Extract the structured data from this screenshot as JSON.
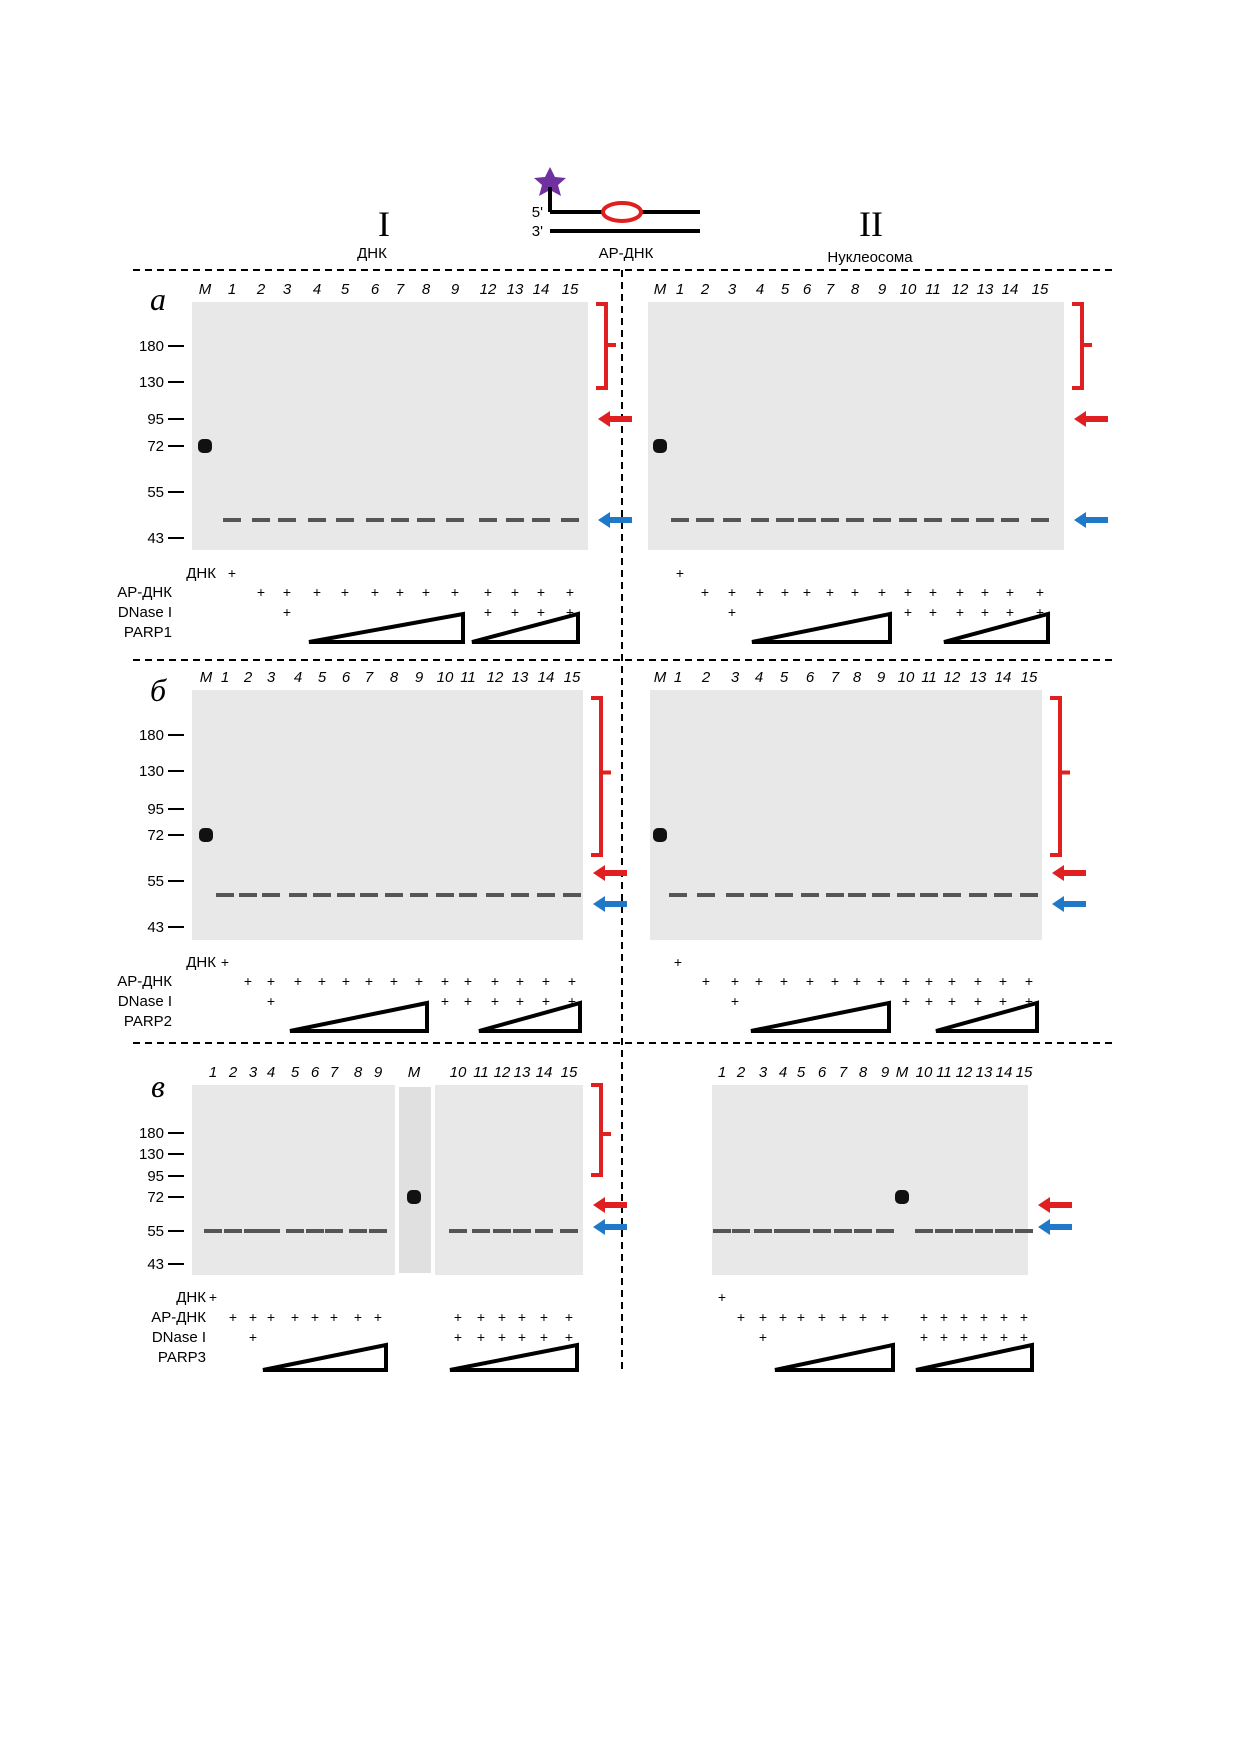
{
  "header": {
    "col1_numeral": "I",
    "col1_label": "ДНК",
    "col2_numeral": "II",
    "col2_label": "Нуклеосома",
    "schema_5": "5'",
    "schema_3": "3'",
    "schema_label": "АР-ДНК",
    "colors": {
      "star": "#7030a0",
      "ap_site": "#e02020",
      "red_arrow": "#e02020",
      "blue_arrow": "#1f78c8",
      "bracket": "#e02020"
    }
  },
  "panels": [
    {
      "letter": "а",
      "row_labels": [
        "ДНК",
        "АР-ДНК",
        "DNase I",
        "PARP1"
      ],
      "gels": [
        {
          "lanes": [
            "M",
            "1",
            "2",
            "3",
            "4",
            "5",
            "6",
            "7",
            "8",
            "9",
            "12",
            "13",
            "14",
            "15"
          ],
          "markers": [
            "180",
            "130",
            "95",
            "72",
            "55",
            "43"
          ],
          "signs": {
            "dna": [
              "",
              "+",
              "",
              "",
              "",
              "",
              "",
              "",
              "",
              "",
              "",
              "",
              "",
              ""
            ],
            "ap": [
              "",
              "",
              "+",
              "+",
              "+",
              "+",
              "+",
              "+",
              "+",
              "+",
              "+",
              "+",
              "+",
              "+"
            ],
            "dnase": [
              "",
              "",
              "",
              "+",
              "",
              "",
              "",
              "",
              "",
              "",
              "+",
              "+",
              "+",
              "+"
            ]
          }
        },
        {
          "lanes": [
            "M",
            "1",
            "2",
            "3",
            "4",
            "5",
            "6",
            "7",
            "8",
            "9",
            "10",
            "11",
            "12",
            "13",
            "14",
            "15"
          ],
          "markers": [],
          "signs": {
            "dna": [
              "",
              "+",
              "",
              "",
              "",
              "",
              "",
              "",
              "",
              "",
              "",
              "",
              "",
              "",
              "",
              ""
            ],
            "ap": [
              "",
              "",
              "+",
              "+",
              "+",
              "+",
              "+",
              "+",
              "+",
              "+",
              "+",
              "+",
              "+",
              "+",
              "+",
              "+"
            ],
            "dnase": [
              "",
              "",
              "",
              "+",
              "",
              "",
              "",
              "",
              "",
              "",
              "+",
              "+",
              "+",
              "+",
              "+",
              "+"
            ]
          }
        }
      ]
    },
    {
      "letter": "б",
      "row_labels": [
        "ДНК",
        "АР-ДНК",
        "DNase I",
        "PARP2"
      ],
      "gels": [
        {
          "lanes": [
            "M",
            "1",
            "2",
            "3",
            "4",
            "5",
            "6",
            "7",
            "8",
            "9",
            "10",
            "11",
            "12",
            "13",
            "14",
            "15"
          ],
          "markers": [
            "180",
            "130",
            "95",
            "72",
            "55",
            "43"
          ],
          "signs": {
            "dna": [
              "",
              "+",
              "",
              "",
              "",
              "",
              "",
              "",
              "",
              "",
              "",
              "",
              "",
              "",
              "",
              ""
            ],
            "ap": [
              "",
              "",
              "+",
              "+",
              "+",
              "+",
              "+",
              "+",
              "+",
              "+",
              "+",
              "+",
              "+",
              "+",
              "+",
              "+"
            ],
            "dnase": [
              "",
              "",
              "",
              "+",
              "",
              "",
              "",
              "",
              "",
              "",
              "+",
              "+",
              "+",
              "+",
              "+",
              "+"
            ]
          }
        },
        {
          "lanes": [
            "M",
            "1",
            "2",
            "3",
            "4",
            "5",
            "6",
            "7",
            "8",
            "9",
            "10",
            "11",
            "12",
            "13",
            "14",
            "15"
          ],
          "markers": [],
          "signs": {
            "dna": [
              "",
              "+",
              "",
              "",
              "",
              "",
              "",
              "",
              "",
              "",
              "",
              "",
              "",
              "",
              "",
              ""
            ],
            "ap": [
              "",
              "",
              "+",
              "+",
              "+",
              "+",
              "+",
              "+",
              "+",
              "+",
              "+",
              "+",
              "+",
              "+",
              "+",
              "+"
            ],
            "dnase": [
              "",
              "",
              "",
              "+",
              "",
              "",
              "",
              "",
              "",
              "",
              "+",
              "+",
              "+",
              "+",
              "+",
              "+"
            ]
          }
        }
      ]
    },
    {
      "letter": "в",
      "row_labels": [
        "ДНК",
        "АР-ДНК",
        "DNase I",
        "PARP3"
      ],
      "gels": [
        {
          "lanes": [
            "1",
            "2",
            "3",
            "4",
            "5",
            "6",
            "7",
            "8",
            "9",
            "M",
            "10",
            "11",
            "12",
            "13",
            "14",
            "15"
          ],
          "markers": [
            "180",
            "130",
            "95",
            "72",
            "55",
            "43"
          ],
          "signs": {
            "dna": [
              "+",
              "",
              "",
              "",
              "",
              "",
              "",
              "",
              "",
              "",
              "",
              "",
              "",
              "",
              "",
              ""
            ],
            "ap": [
              "",
              "+",
              "+",
              "+",
              "+",
              "+",
              "+",
              "+",
              "+",
              "",
              "+",
              "+",
              "+",
              "+",
              "+",
              "+"
            ],
            "dnase": [
              "",
              "",
              "+",
              "",
              "",
              "",
              "",
              "",
              "",
              "",
              "+",
              "+",
              "+",
              "+",
              "+",
              "+"
            ]
          }
        },
        {
          "lanes": [
            "1",
            "2",
            "3",
            "4",
            "5",
            "6",
            "7",
            "8",
            "9",
            "M",
            "10",
            "11",
            "12",
            "13",
            "14",
            "15"
          ],
          "markers": [],
          "signs": {
            "dna": [
              "+",
              "",
              "",
              "",
              "",
              "",
              "",
              "",
              "",
              "",
              "",
              "",
              "",
              "",
              "",
              ""
            ],
            "ap": [
              "",
              "+",
              "+",
              "+",
              "+",
              "+",
              "+",
              "+",
              "+",
              "",
              "+",
              "+",
              "+",
              "+",
              "+",
              "+"
            ],
            "dnase": [
              "",
              "",
              "+",
              "",
              "",
              "",
              "",
              "",
              "",
              "",
              "+",
              "+",
              "+",
              "+",
              "+",
              "+"
            ]
          }
        }
      ]
    }
  ]
}
